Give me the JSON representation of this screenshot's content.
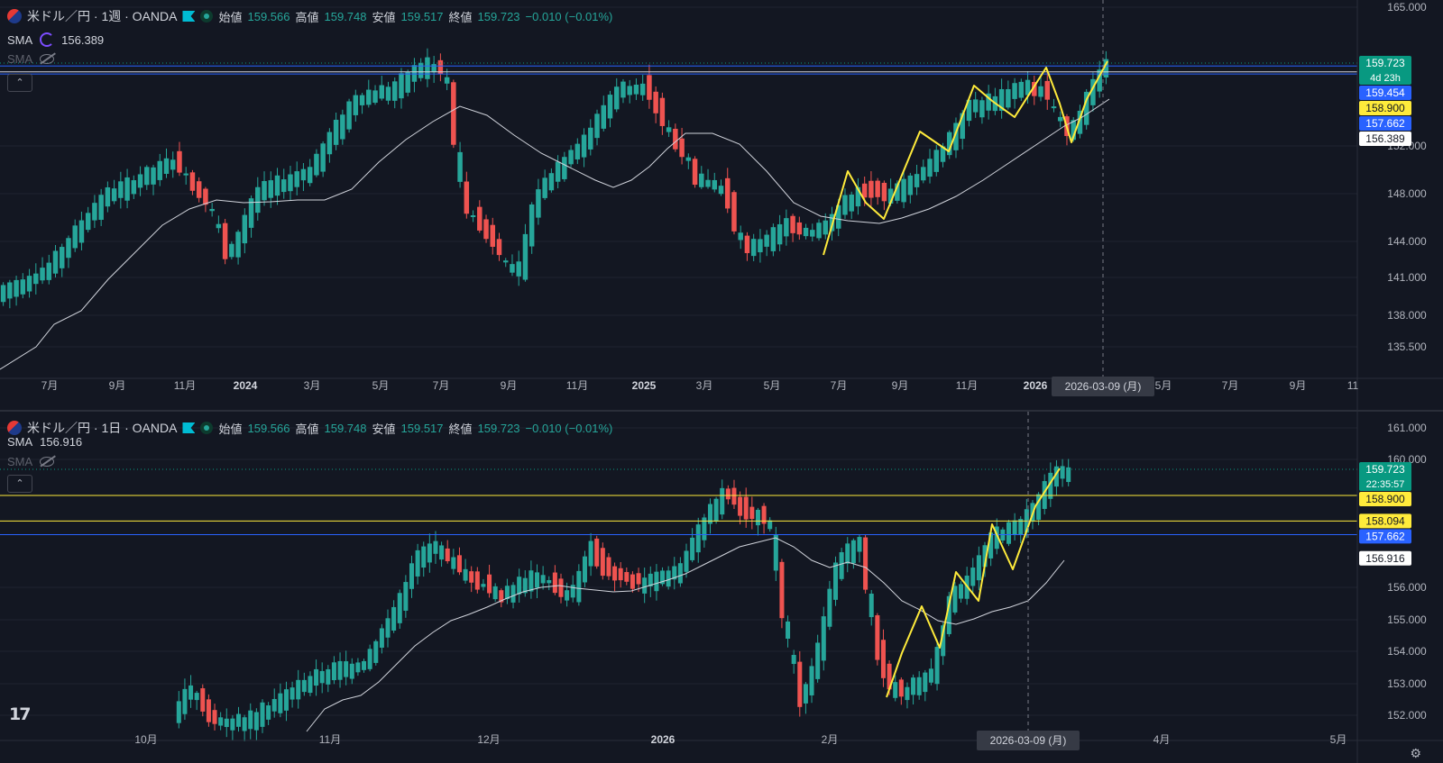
{
  "colors": {
    "up": "#26a69a",
    "down": "#ef5350",
    "sma": "#d1d4dc",
    "yellow": "#ffeb3b",
    "blue": "#2962ff",
    "bg": "#131722",
    "grid": "#1f2330"
  },
  "top": {
    "legend": {
      "title": "米ドル／円 · 1週 · OANDA",
      "open_k": "始値",
      "open": "159.566",
      "high_k": "高値",
      "high": "159.748",
      "low_k": "安値",
      "low": "159.517",
      "close_k": "終値",
      "close": "159.723",
      "change": "−0.010 (−0.01%)"
    },
    "sma1": {
      "label": "SMA",
      "value": "156.389"
    },
    "sma2": {
      "label": "SMA"
    },
    "collapse": "⌃",
    "y_axis": {
      "labels": [
        {
          "t": "165.000",
          "v": 165
        },
        {
          "t": "152.000",
          "v": 152
        },
        {
          "t": "148.000",
          "v": 148
        },
        {
          "t": "144.000",
          "v": 144
        },
        {
          "t": "141.000",
          "v": 141
        },
        {
          "t": "138.000",
          "v": 138
        },
        {
          "t": "135.500",
          "v": 135.5
        }
      ]
    },
    "x_axis": {
      "labels": [
        {
          "t": "7月",
          "b": false
        },
        {
          "t": "9月",
          "b": false
        },
        {
          "t": "11月",
          "b": false
        },
        {
          "t": "2024",
          "b": true
        },
        {
          "t": "3月",
          "b": false
        },
        {
          "t": "5月",
          "b": false
        },
        {
          "t": "7月",
          "b": false
        },
        {
          "t": "9月",
          "b": false
        },
        {
          "t": "11月",
          "b": false
        },
        {
          "t": "2025",
          "b": true
        },
        {
          "t": "3月",
          "b": false
        },
        {
          "t": "5月",
          "b": false
        },
        {
          "t": "7月",
          "b": false
        },
        {
          "t": "9月",
          "b": false
        },
        {
          "t": "11月",
          "b": false
        },
        {
          "t": "2026",
          "b": true
        },
        {
          "t": "5月",
          "b": false
        },
        {
          "t": "7月",
          "b": false
        },
        {
          "t": "9月",
          "b": false
        },
        {
          "t": "11",
          "b": false
        }
      ]
    },
    "crosshair_date": "2026-03-09 (月)",
    "price_tags": [
      {
        "text": "159.723",
        "sub": "4d 23h",
        "bg": "#089981",
        "fg": "#ffffff",
        "v": 159.723
      },
      {
        "text": "159.454",
        "bg": "#2962ff",
        "fg": "#ffffff",
        "v": 159.454
      },
      {
        "text": "158.900",
        "bg": "#ffeb3b",
        "fg": "#131722",
        "v": 158.9
      },
      {
        "text": "157.662",
        "bg": "#2962ff",
        "fg": "#ffffff",
        "v": 157.662
      },
      {
        "text": "156.389",
        "bg": "#ffffff",
        "fg": "#131722",
        "v": 156.389
      }
    ],
    "hlines": [
      {
        "v": 159.454,
        "c": "#2962ff"
      },
      {
        "v": 158.9,
        "c": "#d1d4dc"
      },
      {
        "v": 158.7,
        "c": "#2962ff"
      }
    ]
  },
  "bottom": {
    "legend": {
      "title": "米ドル／円 · 1日 · OANDA",
      "open_k": "始値",
      "open": "159.566",
      "high_k": "高値",
      "high": "159.748",
      "low_k": "安値",
      "low": "159.517",
      "close_k": "終値",
      "close": "159.723",
      "change": "−0.010 (−0.01%)"
    },
    "sma1": {
      "label": "SMA",
      "value": "156.916"
    },
    "sma2": {
      "label": "SMA"
    },
    "collapse": "⌃",
    "y_axis": {
      "labels": [
        {
          "t": "161.000",
          "v": 161
        },
        {
          "t": "160.000",
          "v": 160
        },
        {
          "t": "156.000",
          "v": 156
        },
        {
          "t": "155.000",
          "v": 155
        },
        {
          "t": "154.000",
          "v": 154
        },
        {
          "t": "153.000",
          "v": 153
        },
        {
          "t": "152.000",
          "v": 152
        }
      ]
    },
    "x_axis": {
      "labels": [
        {
          "t": "10月",
          "b": false
        },
        {
          "t": "11月",
          "b": false
        },
        {
          "t": "12月",
          "b": false
        },
        {
          "t": "2026",
          "b": true
        },
        {
          "t": "2月",
          "b": false
        },
        {
          "t": "4月",
          "b": false
        },
        {
          "t": "5月",
          "b": false
        }
      ]
    },
    "crosshair_date": "2026-03-09 (月)",
    "price_tags": [
      {
        "text": "159.723",
        "sub": "22:35:57",
        "bg": "#089981",
        "fg": "#ffffff",
        "v": 159.723
      },
      {
        "text": "158.900",
        "bg": "#ffeb3b",
        "fg": "#131722",
        "v": 158.9
      },
      {
        "text": "158.094",
        "bg": "#ffeb3b",
        "fg": "#131722",
        "v": 158.094
      },
      {
        "text": "157.662",
        "bg": "#2962ff",
        "fg": "#ffffff",
        "v": 157.662
      },
      {
        "text": "156.916",
        "bg": "#ffffff",
        "fg": "#131722",
        "v": 156.916
      }
    ],
    "hlines": [
      {
        "v": 158.9,
        "c": "#ffeb3b"
      },
      {
        "v": 158.094,
        "c": "#ffeb3b"
      },
      {
        "v": 157.662,
        "c": "#2962ff"
      }
    ]
  },
  "logo": "17",
  "settings_icon": "gear-icon"
}
